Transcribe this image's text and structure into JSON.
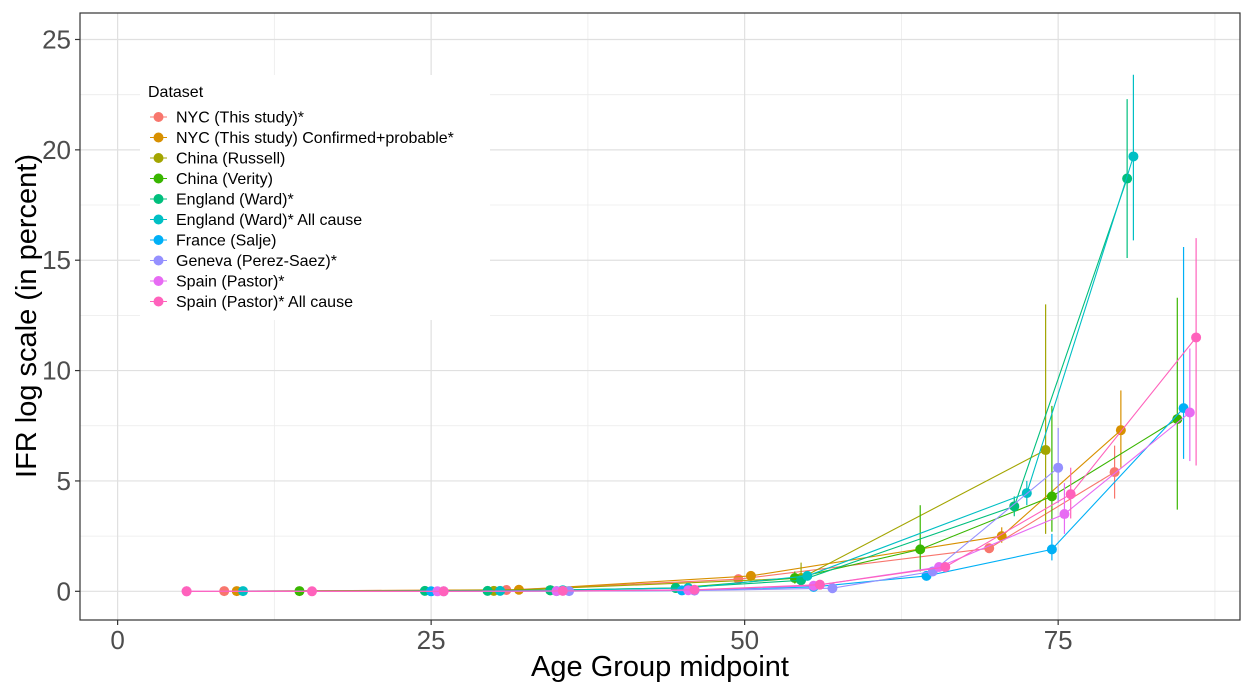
{
  "chart_data": {
    "type": "scatter",
    "xlabel": "Age Group midpoint",
    "ylabel": "IFR log scale (in percent)",
    "xlim": [
      -3,
      89.5
    ],
    "ylim": [
      -1.3,
      26.2
    ],
    "x_ticks": [
      0,
      25,
      50,
      75
    ],
    "x_tick_labels": [
      "0",
      "25",
      "50",
      "75"
    ],
    "y_ticks": [
      0,
      5,
      10,
      15,
      20,
      25
    ],
    "y_tick_labels": [
      "0",
      "5",
      "10",
      "15",
      "20",
      "25"
    ],
    "grid": true,
    "legend_title": "Dataset",
    "legend_position": "top-left",
    "series": [
      {
        "name": "NYC (This study)*",
        "color": "#F8766D",
        "x": [
          8.5,
          31,
          49.5,
          69.5,
          79.5
        ],
        "y": [
          0.01,
          0.06,
          0.55,
          1.95,
          5.4
        ],
        "lo": [
          null,
          null,
          null,
          1.8,
          4.2
        ],
        "hi": [
          null,
          null,
          null,
          2.15,
          6.6
        ]
      },
      {
        "name": "NYC (This study) Confirmed+probable*",
        "color": "#D89000",
        "x": [
          9.5,
          32,
          50.5,
          70.5,
          80
        ],
        "y": [
          0.01,
          0.07,
          0.7,
          2.5,
          7.3
        ],
        "lo": [
          null,
          null,
          null,
          2.2,
          5.6
        ],
        "hi": [
          null,
          null,
          null,
          2.9,
          9.1
        ]
      },
      {
        "name": "China (Russell)",
        "color": "#A3A500",
        "x": [
          30,
          54.5,
          74
        ],
        "y": [
          0.02,
          0.6,
          6.4
        ],
        "lo": [
          null,
          0.3,
          2.6
        ],
        "hi": [
          null,
          1.3,
          13.0
        ]
      },
      {
        "name": "China (Verity)",
        "color": "#39B600",
        "x": [
          14.5,
          34.5,
          44.5,
          54,
          64,
          74.5,
          84.5
        ],
        "y": [
          0.01,
          0.05,
          0.15,
          0.6,
          1.9,
          4.3,
          7.8
        ],
        "lo": [
          null,
          null,
          null,
          0.35,
          0.9,
          2.7,
          3.7
        ],
        "hi": [
          null,
          null,
          null,
          0.9,
          3.9,
          8.4,
          13.3
        ]
      },
      {
        "name": "England (Ward)*",
        "color": "#00BF7D",
        "x": [
          24.5,
          29.5,
          34.5,
          44.5,
          54.5,
          71.5,
          80.5
        ],
        "y": [
          0.02,
          0.02,
          0.05,
          0.15,
          0.5,
          3.85,
          18.7
        ],
        "lo": [
          null,
          null,
          null,
          null,
          null,
          3.4,
          15.1
        ],
        "hi": [
          null,
          null,
          null,
          null,
          null,
          4.3,
          22.3
        ]
      },
      {
        "name": "England (Ward)* All cause",
        "color": "#00BFC4",
        "x": [
          10,
          30.5,
          35.5,
          45.5,
          55,
          72.5,
          81
        ],
        "y": [
          0.01,
          0.02,
          0.05,
          0.15,
          0.7,
          4.45,
          19.7
        ],
        "lo": [
          null,
          null,
          null,
          null,
          null,
          3.9,
          15.9
        ],
        "hi": [
          null,
          null,
          null,
          null,
          null,
          5.0,
          23.4
        ]
      },
      {
        "name": "France (Salje)",
        "color": "#00B0F6",
        "x": [
          25,
          35,
          45,
          55.5,
          64.5,
          74.5,
          85
        ],
        "y": [
          0.0,
          0.01,
          0.04,
          0.2,
          0.7,
          1.9,
          8.3
        ],
        "lo": [
          null,
          null,
          null,
          null,
          0.5,
          1.4,
          6.0
        ],
        "hi": [
          null,
          null,
          null,
          null,
          0.9,
          2.6,
          15.6
        ]
      },
      {
        "name": "Geneva (Perez-Saez)*",
        "color": "#9590FF",
        "x": [
          26,
          36,
          46,
          57,
          65,
          75
        ],
        "y": [
          0.0,
          0.01,
          0.03,
          0.14,
          0.9,
          5.6
        ],
        "lo": [
          null,
          null,
          null,
          null,
          null,
          4.0
        ],
        "hi": [
          null,
          null,
          null,
          null,
          null,
          7.4
        ]
      },
      {
        "name": "Spain (Pastor)*",
        "color": "#E76BF3",
        "x": [
          5.5,
          25.5,
          35,
          45.5,
          55.5,
          65.5,
          75.5,
          85.5
        ],
        "y": [
          0.0,
          0.0,
          0.01,
          0.05,
          0.25,
          1.1,
          3.5,
          8.1
        ],
        "lo": [
          null,
          null,
          null,
          null,
          null,
          null,
          2.6,
          5.9
        ],
        "hi": [
          null,
          null,
          null,
          null,
          null,
          null,
          4.9,
          11.0
        ]
      },
      {
        "name": "Spain (Pastor)* All cause",
        "color": "#FF62BC",
        "x": [
          5.5,
          15.5,
          26,
          35.5,
          46,
          56,
          66,
          76,
          86
        ],
        "y": [
          0.0,
          0.0,
          0.0,
          0.02,
          0.07,
          0.3,
          1.1,
          4.4,
          11.5
        ],
        "lo": [
          null,
          null,
          null,
          null,
          null,
          null,
          null,
          3.3,
          5.7
        ],
        "hi": [
          null,
          null,
          null,
          null,
          null,
          null,
          null,
          5.6,
          16.0
        ]
      }
    ]
  }
}
